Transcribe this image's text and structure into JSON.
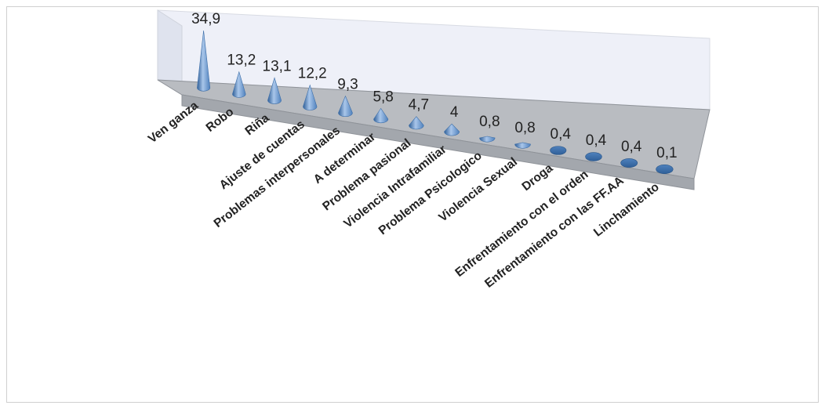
{
  "chart_data": {
    "type": "bar",
    "style": "3d-cone",
    "categories": [
      "Ven ganza",
      "Robo",
      "Riña",
      "Ajuste de cuentas",
      "Problemas interpersonales",
      "A determinar",
      "Problema pasional",
      "Violencia Intrafamiliar",
      "Problema Psicologico",
      "Violencia Sexual",
      "Droga",
      "Enfrentamiento con el orden",
      "Enfrentamiento con las FF.AA",
      "Linchamiento"
    ],
    "values": [
      34.9,
      13.2,
      13.1,
      12.2,
      9.3,
      5.8,
      4.7,
      4,
      0.8,
      0.8,
      0.4,
      0.4,
      0.4,
      0.1
    ],
    "value_labels": [
      "34,9",
      "13,2",
      "13,1",
      "12,2",
      "9,3",
      "5,8",
      "4,7",
      "4",
      "0,8",
      "0,8",
      "0,4",
      "0,4",
      "0,4",
      "0,1"
    ],
    "title": "",
    "xlabel": "",
    "ylabel": "",
    "ylim": [
      0,
      35
    ],
    "grid": false,
    "legend": "none",
    "colors": {
      "cone": "#4f81bd",
      "cone_light": "#a9c6ea",
      "cone_dark": "#2f5f98",
      "back_wall": "#eef0f8",
      "floor": "#b9bcc1",
      "floor_edge": "#8f9399"
    }
  }
}
